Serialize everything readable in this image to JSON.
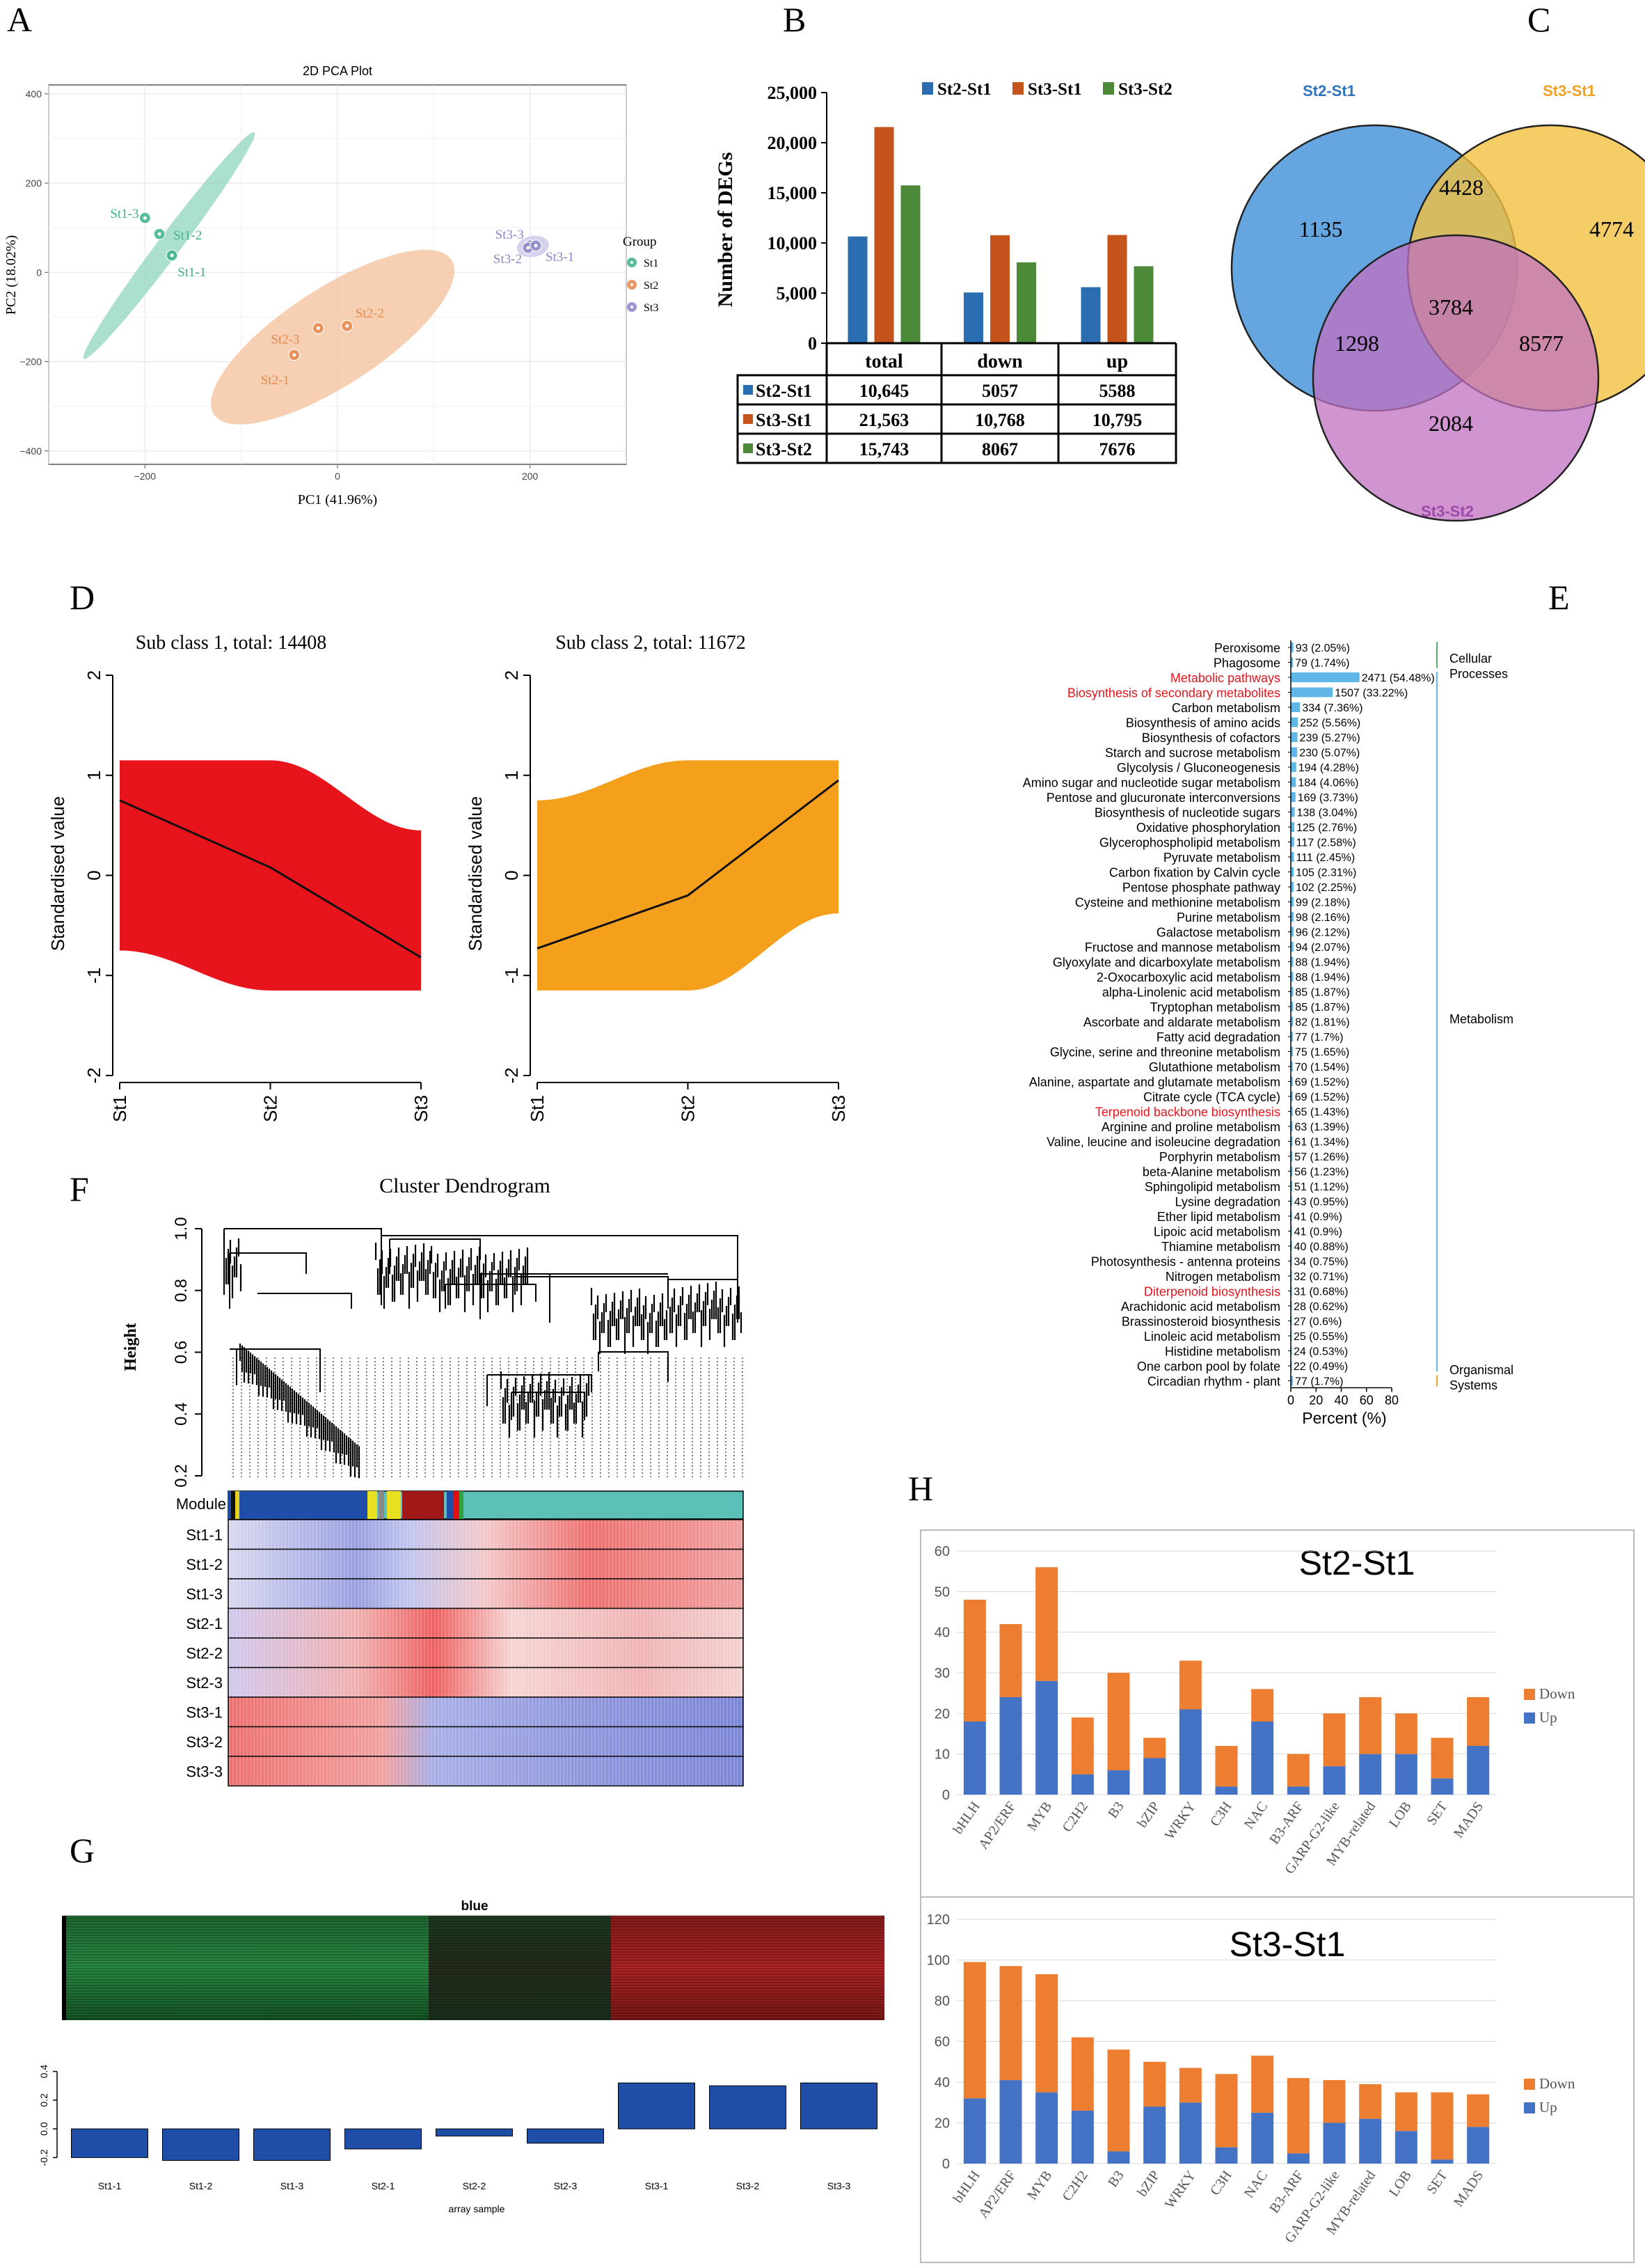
{
  "panels": {
    "A": "A",
    "B": "B",
    "C": "C",
    "D": "D",
    "E": "E",
    "F": "F",
    "G": "G",
    "H": "H"
  },
  "chart_data": [
    {
      "id": "A",
      "type": "scatter",
      "title": "2D PCA Plot",
      "xlabel": "PC1 (41.96%)",
      "ylabel": "PC2 (18.02%)",
      "xlim": [
        -300,
        300
      ],
      "ylim": [
        -430,
        420
      ],
      "xticks": [
        -200,
        0,
        200
      ],
      "yticks": [
        -400,
        -200,
        0,
        200,
        400
      ],
      "grid": true,
      "legend_title": "Group",
      "legend_position": "right",
      "series": [
        {
          "name": "St1",
          "color": "#3cb386",
          "points": [
            {
              "label": "St1-3",
              "x": -200,
              "y": 122
            },
            {
              "label": "St1-2",
              "x": -185,
              "y": 86
            },
            {
              "label": "St1-1",
              "x": -172,
              "y": 38
            }
          ]
        },
        {
          "name": "St2",
          "color": "#e6874a",
          "points": [
            {
              "label": "St2-2",
              "x": 10,
              "y": -120
            },
            {
              "label": "St2-3",
              "x": -20,
              "y": -125
            },
            {
              "label": "St2-1",
              "x": -45,
              "y": -185
            }
          ]
        },
        {
          "name": "St3",
          "color": "#8b87c8",
          "points": [
            {
              "label": "St3-3",
              "x": 200,
              "y": 60
            },
            {
              "label": "St3-2",
              "x": 198,
              "y": 55
            },
            {
              "label": "St3-1",
              "x": 206,
              "y": 60
            }
          ]
        }
      ]
    },
    {
      "id": "B",
      "type": "bar",
      "ylabel": "Number of DEGs",
      "ylim": [
        0,
        25000
      ],
      "yticks": [
        "0",
        "5,000",
        "10,000",
        "15,000",
        "20,000",
        "25,000"
      ],
      "categories": [
        "total",
        "down",
        "up"
      ],
      "legend_position": "top",
      "series": [
        {
          "name": "St2-St1",
          "color": "#2a6db0",
          "values": [
            10645,
            5057,
            5588
          ],
          "labels": [
            "10,645",
            "5057",
            "5588"
          ]
        },
        {
          "name": "St3-St1",
          "color": "#c4541c",
          "values": [
            21563,
            10768,
            10795
          ],
          "labels": [
            "21,563",
            "10,768",
            "10,795"
          ]
        },
        {
          "name": "St3-St2",
          "color": "#4c8a3a",
          "values": [
            15743,
            8067,
            7676
          ],
          "labels": [
            "15,743",
            "8067",
            "7676"
          ]
        }
      ]
    },
    {
      "id": "C",
      "type": "venn",
      "sets": [
        {
          "name": "St2-St1",
          "color": "#3f8fd8",
          "label_color": "#2f74c0"
        },
        {
          "name": "St3-St1",
          "color": "#f2c040",
          "label_color": "#f0a020"
        },
        {
          "name": "St3-St2",
          "color": "#c070c0",
          "label_color": "#9b4aa8"
        }
      ],
      "regions": {
        "only_1": "1135",
        "only_2": "4774",
        "only_3": "2084",
        "1_2": "4428",
        "1_3": "1298",
        "2_3": "8577",
        "1_2_3": "3784"
      }
    },
    {
      "id": "D",
      "type": "area",
      "ylabel": "Standardised value",
      "ylim": [
        -2,
        2
      ],
      "yticks": [
        "-2",
        "-1",
        "0",
        "1",
        "2"
      ],
      "categories": [
        "St1",
        "St2",
        "St3"
      ],
      "subplots": [
        {
          "title": "Sub class 1, total: 14408",
          "color": "#e8141c",
          "mean": [
            0.75,
            0.08,
            -0.82
          ],
          "upper": [
            1.15,
            1.15,
            0.45
          ],
          "lower": [
            -0.75,
            -1.15,
            -1.15
          ]
        },
        {
          "title": "Sub class 2, total: 11672",
          "color": "#f5a01c",
          "mean": [
            -0.73,
            -0.2,
            0.95
          ],
          "upper": [
            0.75,
            1.15,
            1.15
          ],
          "lower": [
            -1.15,
            -1.15,
            -0.38
          ]
        }
      ]
    },
    {
      "id": "E",
      "type": "bar",
      "orientation": "horizontal",
      "xlabel": "Percent (%)",
      "xlim": [
        0,
        80
      ],
      "xticks": [
        "0",
        "20",
        "40",
        "60",
        "80"
      ],
      "bar_color": "#5fb7e8",
      "groups": [
        {
          "name": "Cellular Processes",
          "color": "#5aa86a",
          "first": 0,
          "last": 1
        },
        {
          "name": "Metabolism",
          "color": "#5fb7e8",
          "first": 2,
          "last": 48
        },
        {
          "name": "Organismal Systems",
          "color": "#f0a030",
          "first": 49,
          "last": 49
        }
      ],
      "items": [
        {
          "label": "Peroxisome",
          "count": 93,
          "percent": 2.05,
          "text": "93 (2.05%)"
        },
        {
          "label": "Phagosome",
          "count": 79,
          "percent": 1.74,
          "text": "79 (1.74%)"
        },
        {
          "label": "Metabolic pathways",
          "count": 2471,
          "percent": 54.48,
          "text": "2471 (54.48%)",
          "highlight": true
        },
        {
          "label": "Biosynthesis of secondary metabolites",
          "count": 1507,
          "percent": 33.22,
          "text": "1507 (33.22%)",
          "highlight": true
        },
        {
          "label": "Carbon metabolism",
          "count": 334,
          "percent": 7.36,
          "text": "334 (7.36%)"
        },
        {
          "label": "Biosynthesis of amino acids",
          "count": 252,
          "percent": 5.56,
          "text": "252 (5.56%)"
        },
        {
          "label": "Biosynthesis of cofactors",
          "count": 239,
          "percent": 5.27,
          "text": "239 (5.27%)"
        },
        {
          "label": "Starch and sucrose metabolism",
          "count": 230,
          "percent": 5.07,
          "text": "230 (5.07%)"
        },
        {
          "label": "Glycolysis / Gluconeogenesis",
          "count": 194,
          "percent": 4.28,
          "text": "194 (4.28%)"
        },
        {
          "label": "Amino sugar and nucleotide sugar metabolism",
          "count": 184,
          "percent": 4.06,
          "text": "184 (4.06%)"
        },
        {
          "label": "Pentose and glucuronate interconversions",
          "count": 169,
          "percent": 3.73,
          "text": "169 (3.73%)"
        },
        {
          "label": "Biosynthesis of nucleotide sugars",
          "count": 138,
          "percent": 3.04,
          "text": "138 (3.04%)"
        },
        {
          "label": "Oxidative phosphorylation",
          "count": 125,
          "percent": 2.76,
          "text": "125 (2.76%)"
        },
        {
          "label": "Glycerophospholipid metabolism",
          "count": 117,
          "percent": 2.58,
          "text": "117 (2.58%)"
        },
        {
          "label": "Pyruvate metabolism",
          "count": 111,
          "percent": 2.45,
          "text": "111 (2.45%)"
        },
        {
          "label": "Carbon fixation by Calvin cycle",
          "count": 105,
          "percent": 2.31,
          "text": "105 (2.31%)"
        },
        {
          "label": "Pentose phosphate pathway",
          "count": 102,
          "percent": 2.25,
          "text": "102 (2.25%)"
        },
        {
          "label": "Cysteine and methionine metabolism",
          "count": 99,
          "percent": 2.18,
          "text": "99 (2.18%)"
        },
        {
          "label": "Purine metabolism",
          "count": 98,
          "percent": 2.16,
          "text": "98 (2.16%)"
        },
        {
          "label": "Galactose metabolism",
          "count": 96,
          "percent": 2.12,
          "text": "96 (2.12%)"
        },
        {
          "label": "Fructose and mannose metabolism",
          "count": 94,
          "percent": 2.07,
          "text": "94 (2.07%)"
        },
        {
          "label": "Glyoxylate and dicarboxylate metabolism",
          "count": 88,
          "percent": 1.94,
          "text": "88 (1.94%)"
        },
        {
          "label": "2-Oxocarboxylic acid metabolism",
          "count": 88,
          "percent": 1.94,
          "text": "88 (1.94%)"
        },
        {
          "label": "alpha-Linolenic acid metabolism",
          "count": 85,
          "percent": 1.87,
          "text": "85 (1.87%)"
        },
        {
          "label": "Tryptophan metabolism",
          "count": 85,
          "percent": 1.87,
          "text": "85 (1.87%)"
        },
        {
          "label": "Ascorbate and aldarate metabolism",
          "count": 82,
          "percent": 1.81,
          "text": "82 (1.81%)"
        },
        {
          "label": "Fatty acid degradation",
          "count": 77,
          "percent": 1.7,
          "text": "77 (1.7%)"
        },
        {
          "label": "Glycine, serine and threonine metabolism",
          "count": 75,
          "percent": 1.65,
          "text": "75 (1.65%)"
        },
        {
          "label": "Glutathione metabolism",
          "count": 70,
          "percent": 1.54,
          "text": "70 (1.54%)"
        },
        {
          "label": "Alanine, aspartate and glutamate metabolism",
          "count": 69,
          "percent": 1.52,
          "text": "69 (1.52%)"
        },
        {
          "label": "Citrate cycle (TCA cycle)",
          "count": 69,
          "percent": 1.52,
          "text": "69 (1.52%)"
        },
        {
          "label": "Terpenoid backbone biosynthesis",
          "count": 65,
          "percent": 1.43,
          "text": "65 (1.43%)",
          "highlight": true
        },
        {
          "label": "Arginine and proline metabolism",
          "count": 63,
          "percent": 1.39,
          "text": "63 (1.39%)"
        },
        {
          "label": "Valine, leucine and isoleucine degradation",
          "count": 61,
          "percent": 1.34,
          "text": "61 (1.34%)"
        },
        {
          "label": "Porphyrin metabolism",
          "count": 57,
          "percent": 1.26,
          "text": "57 (1.26%)"
        },
        {
          "label": "beta-Alanine metabolism",
          "count": 56,
          "percent": 1.23,
          "text": "56 (1.23%)"
        },
        {
          "label": "Sphingolipid metabolism",
          "count": 51,
          "percent": 1.12,
          "text": "51 (1.12%)"
        },
        {
          "label": "Lysine degradation",
          "count": 43,
          "percent": 0.95,
          "text": "43 (0.95%)"
        },
        {
          "label": "Ether lipid metabolism",
          "count": 41,
          "percent": 0.9,
          "text": "41 (0.9%)"
        },
        {
          "label": "Lipoic acid metabolism",
          "count": 41,
          "percent": 0.9,
          "text": "41 (0.9%)"
        },
        {
          "label": "Thiamine metabolism",
          "count": 40,
          "percent": 0.88,
          "text": "40 (0.88%)"
        },
        {
          "label": "Photosynthesis - antenna proteins",
          "count": 34,
          "percent": 0.75,
          "text": "34 (0.75%)"
        },
        {
          "label": "Nitrogen metabolism",
          "count": 32,
          "percent": 0.71,
          "text": "32 (0.71%)"
        },
        {
          "label": "Diterpenoid biosynthesis",
          "count": 31,
          "percent": 0.68,
          "text": "31 (0.68%)",
          "highlight": true
        },
        {
          "label": "Arachidonic acid metabolism",
          "count": 28,
          "percent": 0.62,
          "text": "28 (0.62%)"
        },
        {
          "label": "Brassinosteroid biosynthesis",
          "count": 27,
          "percent": 0.6,
          "text": "27 (0.6%)"
        },
        {
          "label": "Linoleic acid metabolism",
          "count": 25,
          "percent": 0.55,
          "text": "25 (0.55%)"
        },
        {
          "label": "Histidine metabolism",
          "count": 24,
          "percent": 0.53,
          "text": "24 (0.53%)"
        },
        {
          "label": "One carbon pool by folate",
          "count": 22,
          "percent": 0.49,
          "text": "22 (0.49%)"
        },
        {
          "label": "Circadian rhythm - plant",
          "count": 77,
          "percent": 1.7,
          "text": "77 (1.7%)"
        }
      ]
    },
    {
      "id": "F",
      "type": "heatmap",
      "title": "Cluster Dendrogram",
      "ylabel": "Height",
      "yticks": [
        "0.2",
        "0.4",
        "0.6",
        "0.8",
        "1.0"
      ],
      "module_label": "Module",
      "rows": [
        "St1-1",
        "St1-2",
        "St1-3",
        "St2-1",
        "St2-2",
        "St2-3",
        "St3-1",
        "St3-2",
        "St3-3"
      ]
    },
    {
      "id": "G",
      "type": "bar",
      "title": "blue",
      "xlabel": "array sample",
      "ylim": [
        -0.3,
        0.5
      ],
      "yticks": [
        "-0.2",
        "0.0",
        "0.2",
        "0.4"
      ],
      "categories": [
        "St1-1",
        "St1-2",
        "St1-3",
        "St2-1",
        "St2-2",
        "St2-3",
        "St3-1",
        "St3-2",
        "St3-3"
      ],
      "values": [
        -0.2,
        -0.22,
        -0.22,
        -0.14,
        -0.05,
        -0.1,
        0.32,
        0.3,
        0.32
      ],
      "bar_color": "#1f4ea8"
    },
    {
      "id": "H1",
      "type": "bar",
      "stacked": true,
      "title": "St2-St1",
      "ylim": [
        0,
        60
      ],
      "yticks": [
        "0",
        "10",
        "20",
        "30",
        "40",
        "50",
        "60"
      ],
      "categories": [
        "bHLH",
        "AP2/ERF",
        "MYB",
        "C2H2",
        "B3",
        "bZIP",
        "WRKY",
        "C3H",
        "NAC",
        "B3-ARF",
        "GARP-G2-like",
        "MYB-related",
        "LOB",
        "SET",
        "MADS"
      ],
      "legend_position": "right",
      "series": [
        {
          "name": "Up",
          "color": "#4472c4",
          "values": [
            18,
            24,
            28,
            5,
            6,
            9,
            21,
            2,
            18,
            2,
            7,
            10,
            10,
            4,
            12
          ]
        },
        {
          "name": "Down",
          "color": "#ed7d31",
          "values": [
            30,
            18,
            28,
            14,
            24,
            5,
            12,
            10,
            8,
            8,
            13,
            14,
            10,
            10,
            12
          ]
        }
      ]
    },
    {
      "id": "H2",
      "type": "bar",
      "stacked": true,
      "title": "St3-St1",
      "ylim": [
        0,
        120
      ],
      "yticks": [
        "0",
        "20",
        "40",
        "60",
        "80",
        "100",
        "120"
      ],
      "categories": [
        "bHLH",
        "AP2/ERF",
        "MYB",
        "C2H2",
        "B3",
        "bZIP",
        "WRKY",
        "C3H",
        "NAC",
        "B3-ARF",
        "GARP-G2-like",
        "MYB-related",
        "LOB",
        "SET",
        "MADS"
      ],
      "legend_position": "right",
      "series": [
        {
          "name": "Up",
          "color": "#4472c4",
          "values": [
            32,
            41,
            35,
            26,
            6,
            28,
            30,
            8,
            25,
            5,
            20,
            22,
            16,
            2,
            18
          ]
        },
        {
          "name": "Down",
          "color": "#ed7d31",
          "values": [
            67,
            56,
            58,
            36,
            50,
            22,
            17,
            36,
            28,
            37,
            21,
            17,
            19,
            33,
            16
          ]
        }
      ]
    }
  ]
}
